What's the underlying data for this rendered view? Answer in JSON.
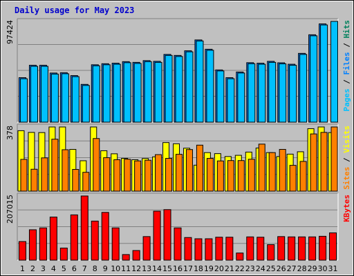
{
  "colors": {
    "background": "#c0c0c0",
    "pages": "#00c0ff",
    "files": "#0080ff",
    "hits": "#00805c",
    "sites": "#ff8000",
    "visits": "#ffff00",
    "kbytes": "#ff0000",
    "weekend_day": "#00805c",
    "weekday_day": "#000000",
    "grid": "#808080"
  },
  "chart_data": {
    "title": "Daily usage for May 2023",
    "type": "bar",
    "days": [
      "1",
      "2",
      "3",
      "4",
      "5",
      "6",
      "7",
      "8",
      "9",
      "10",
      "11",
      "12",
      "13",
      "14",
      "15",
      "16",
      "17",
      "18",
      "19",
      "20",
      "21",
      "22",
      "23",
      "24",
      "25",
      "26",
      "27",
      "28",
      "29",
      "30",
      "31"
    ],
    "weekend_days": [
      "6",
      "7",
      "13",
      "14",
      "20",
      "21",
      "27",
      "28"
    ],
    "panels": [
      {
        "id": "hits",
        "ymax_label": "97424",
        "ymax": 97424,
        "series": [
          {
            "name": "Hits",
            "key": "hits",
            "values": [
              0,
              0,
              0,
              0,
              0,
              0,
              0,
              0,
              0,
              0,
              0,
              0,
              0,
              0,
              0,
              0,
              0,
              0,
              0,
              0,
              0,
              0,
              0,
              0,
              0,
              0,
              0,
              0,
              0,
              0,
              0
            ]
          },
          {
            "name": "Files",
            "key": "files",
            "values": [
              43000,
              55000,
              55000,
              47500,
              47800,
              45000,
              36500,
              55500,
              56500,
              57000,
              58500,
              57800,
              59500,
              58800,
              65500,
              64500,
              69000,
              79500,
              70500,
              50500,
              43000,
              48500,
              57500,
              57000,
              58800,
              57400,
              56000,
              66500,
              84500,
              95000,
              0
            ]
          },
          {
            "name": "Pages",
            "key": "pages",
            "values": [
              42000,
              54000,
              54000,
              46500,
              46800,
              44000,
              35500,
              54500,
              55500,
              56000,
              57500,
              56800,
              58500,
              57800,
              64500,
              63500,
              68000,
              78500,
              69500,
              49500,
              42000,
              47500,
              56500,
              56000,
              57800,
              56400,
              55000,
              65500,
              83500,
              94000,
              97424
            ]
          }
        ]
      },
      {
        "id": "visits",
        "ymax_label": "378",
        "ymax": 378,
        "series": [
          {
            "name": "Visits",
            "key": "visits",
            "values": [
              356,
              346,
              345,
              388,
              385,
              246,
              179,
              378,
              238,
              220,
              193,
              185,
              192,
              202,
              286,
              279,
              253,
              153,
              227,
              221,
              204,
              211,
              230,
              254,
              227,
              204,
              218,
              232,
              368,
              400,
              345
            ]
          },
          {
            "name": "Sites",
            "key": "sites",
            "values": [
              187,
              129,
              196,
              306,
              244,
              128,
              111,
              310,
              197,
              185,
              188,
              178,
              182,
              215,
              193,
              217,
              245,
              271,
              193,
              178,
              180,
              180,
              188,
              277,
              227,
              246,
              152,
              175,
              337,
              346,
              390
            ]
          }
        ]
      },
      {
        "id": "kbytes",
        "ymax_label": "207015",
        "ymax": 207015,
        "series": [
          {
            "name": "KBytes",
            "key": "kbytes",
            "values": [
              60000,
              98000,
              104000,
              139000,
              39000,
              146000,
              284000,
              126000,
              154000,
              104000,
              18000,
              31000,
              76000,
              158000,
              163000,
              104000,
              73000,
              69000,
              69000,
              74000,
              74000,
              23000,
              75000,
              74000,
              50000,
              76000,
              75000,
              75000,
              75000,
              77000,
              88000
            ]
          }
        ]
      }
    ],
    "right_labels": [
      {
        "panel": "hits",
        "parts": [
          {
            "text": "Pages",
            "key": "pages"
          },
          {
            "text": " / ",
            "key": "sep"
          },
          {
            "text": "Files",
            "key": "files"
          },
          {
            "text": " / ",
            "key": "sep"
          },
          {
            "text": "Hits",
            "key": "hits"
          }
        ]
      },
      {
        "panel": "visits",
        "parts": [
          {
            "text": "Sites",
            "key": "sites"
          },
          {
            "text": " / ",
            "key": "sep"
          },
          {
            "text": "Visits",
            "key": "visits"
          }
        ]
      },
      {
        "panel": "kbytes",
        "parts": [
          {
            "text": "KBytes",
            "key": "kbytes"
          }
        ]
      }
    ]
  }
}
